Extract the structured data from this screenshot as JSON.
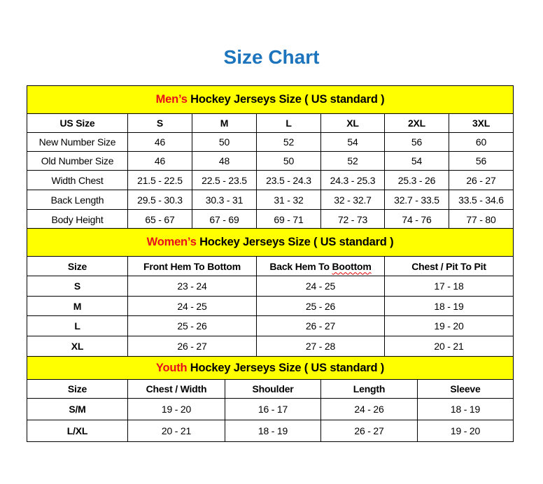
{
  "title": "Size Chart",
  "colors": {
    "title": "#1b74bc",
    "band_background": "#ffff00",
    "band_lead": "#e8101a"
  },
  "men": {
    "band_lead": "Men’s",
    "band_rest": " Hockey Jerseys Size ( US standard )",
    "headers": [
      "US Size",
      "S",
      "M",
      "L",
      "XL",
      "2XL",
      "3XL"
    ],
    "rows": [
      [
        "New Number Size",
        "46",
        "50",
        "52",
        "54",
        "56",
        "60"
      ],
      [
        "Old Number Size",
        "46",
        "48",
        "50",
        "52",
        "54",
        "56"
      ],
      [
        "Width Chest",
        "21.5 - 22.5",
        "22.5 - 23.5",
        "23.5 - 24.3",
        "24.3 - 25.3",
        "25.3 - 26",
        "26 - 27"
      ],
      [
        "Back Length",
        "29.5 - 30.3",
        "30.3 - 31",
        "31 - 32",
        "32 - 32.7",
        "32.7 - 33.5",
        "33.5 - 34.6"
      ],
      [
        "Body Height",
        "65 - 67",
        "67 - 69",
        "69 - 71",
        "72 - 73",
        "74 - 76",
        "77 - 80"
      ]
    ]
  },
  "women": {
    "band_lead": "Women’s",
    "band_rest": " Hockey Jerseys Size ( US standard )",
    "headers": [
      "Size",
      "Front Hem To Bottom",
      "Back Hem To Boottom",
      "Chest / Pit To Pit"
    ],
    "rows": [
      [
        "S",
        "23 - 24",
        "24 - 25",
        "17 - 18"
      ],
      [
        "M",
        "24 - 25",
        "25 - 26",
        "18 - 19"
      ],
      [
        "L",
        "25 - 26",
        "26 - 27",
        "19 - 20"
      ],
      [
        "XL",
        "26 - 27",
        "27 - 28",
        "20 - 21"
      ]
    ]
  },
  "youth": {
    "band_lead": "Youth",
    "band_rest": " Hockey Jerseys Size ( US standard )",
    "headers": [
      "Size",
      "Chest / Width",
      "Shoulder",
      "Length",
      "Sleeve"
    ],
    "rows": [
      [
        "S/M",
        "19 - 20",
        "16 - 17",
        "24 - 26",
        "18 - 19"
      ],
      [
        "L/XL",
        "20 - 21",
        "18 - 19",
        "26 - 27",
        "19 - 20"
      ]
    ]
  }
}
